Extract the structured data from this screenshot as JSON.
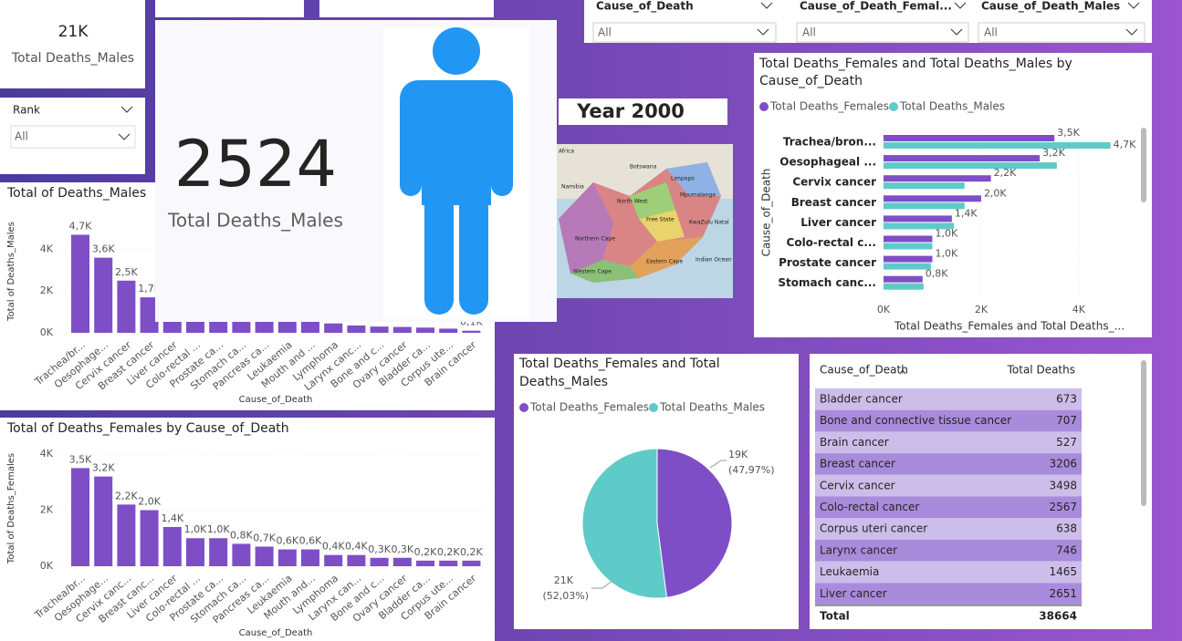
{
  "cards": [
    {
      "value": "21K",
      "label": "Total Deaths_Males"
    },
    {
      "value": 2524,
      "label": "Total Deaths_Males"
    }
  ],
  "slicers": [
    {
      "title": "Rank",
      "value": "All"
    },
    {
      "title": "Cause_of_Death",
      "value": "All"
    },
    {
      "title": "Cause_of_Death_Femal...",
      "value": "All"
    },
    {
      "title": "Cause_of_Death_Males",
      "value": "All"
    }
  ],
  "year_label": "Year 2000",
  "map": {
    "labels": [
      "Africa",
      "Botswana",
      "Namibia",
      "Limpopo",
      "North West",
      "Mpumalanga",
      "Free State",
      "KwaZulu Natal",
      "Northern Cape",
      "Eastern Cape",
      "Western Cape",
      "Indian Ocean"
    ]
  },
  "charts": [
    {
      "type": "bar",
      "title": "Total of Deaths_Males",
      "x_label": "Cause_of_Death",
      "y_label": "Total of Deaths_Males",
      "categories": [
        "Trachea/br...",
        "Oesophage...",
        "Cervix cancer",
        "Breast cancer",
        "Liver cancer",
        "Colo-rectal ...",
        "Prostate ca...",
        "Stomach ca...",
        "Pancreas ca...",
        "Leukaemia",
        "Mouth and ...",
        "Lymphoma",
        "Larynx canc...",
        "Bone and c...",
        "Ovary cancer",
        "Bladder ca...",
        "Corpus ute...",
        "Brain cancer"
      ],
      "values": [
        4700,
        3600,
        2500,
        1700,
        1400,
        1100,
        1000,
        900,
        800,
        700,
        600,
        450,
        350,
        300,
        280,
        250,
        200,
        100
      ],
      "value_labels": [
        "4,7K",
        "3,6K",
        "2,5K",
        "1,7K",
        null,
        null,
        null,
        null,
        null,
        null,
        null,
        null,
        null,
        null,
        null,
        null,
        null,
        "0,1K"
      ],
      "color": "#7e4ec7",
      "ylim": [
        0,
        5900
      ],
      "yticks": [
        {
          "value": 0,
          "label": "0K"
        },
        {
          "value": 2000,
          "label": "2K"
        },
        {
          "value": 4000,
          "label": "4K"
        }
      ]
    },
    {
      "type": "bar",
      "title": "Total of Deaths_Females by Cause_of_Death",
      "x_label": "Cause_of_Death",
      "y_label": "Total of Deaths_Females",
      "categories": [
        "Trachea/br...",
        "Oesophage...",
        "Cervix canc...",
        "Breast canc...",
        "Liver cancer",
        "Colo-rectal ...",
        "Prostate ca...",
        "Stomach ca...",
        "Pancreas ca...",
        "Leukaemia",
        "Mouth and...",
        "Lymphoma",
        "Larynx can...",
        "Bone and c...",
        "Ovary cancer",
        "Bladder ca...",
        "Corpus ute...",
        "Brain cancer"
      ],
      "values": [
        3500,
        3200,
        2200,
        2000,
        1400,
        1000,
        1000,
        800,
        700,
        600,
        600,
        400,
        400,
        300,
        300,
        200,
        200,
        200
      ],
      "value_labels": [
        "3,5K",
        "3,2K",
        "2,2K",
        "2,0K",
        "1,4K",
        "1,0K",
        "1,0K",
        "0,8K",
        "0,7K",
        "0,6K",
        "0,6K",
        "0,4K",
        "0,4K",
        "0,3K",
        "0,3K",
        "0,2K",
        "0,2K",
        "0,2K"
      ],
      "color": "#7e4ec7",
      "ylim": [
        0,
        4130
      ],
      "yticks": [
        {
          "value": 0,
          "label": "0K"
        },
        {
          "value": 2000,
          "label": "2K"
        },
        {
          "value": 4000,
          "label": "4K"
        }
      ]
    },
    {
      "type": "hbar",
      "title": [
        "Total Deaths_Females and Total Deaths_Males by",
        "Cause_of_Death"
      ],
      "x_label": "Total Deaths_Females and Total Deaths_...",
      "y_label": "Cause_of_Death",
      "categories": [
        "Trachea/bron...",
        "Oesophageal ...",
        "Cervix cancer",
        "Breast cancer",
        "Liver cancer",
        "Colo-rectal c...",
        "Prostate cancer",
        "Stomach canc..."
      ],
      "series": [
        {
          "name": "Total Deaths_Females",
          "color": "#7e4ec7",
          "values": [
            3500,
            3200,
            2200,
            2000,
            1400,
            1000,
            1000,
            800
          ],
          "value_labels": [
            "3,5K",
            "3,2K",
            "2,2K",
            "2,0K",
            "1,4K",
            "1,0K",
            "1,0K",
            "0,8K"
          ]
        },
        {
          "name": "Total  Deaths_Males",
          "color": "#5ecbc8",
          "values": [
            4650,
            3550,
            1660,
            1660,
            1440,
            1000,
            970,
            820
          ],
          "value_labels": [
            "4,7K",
            null,
            null,
            null,
            null,
            null,
            null,
            null
          ]
        }
      ],
      "xlim": [
        0,
        5180
      ],
      "xticks": [
        {
          "value": 0,
          "label": "0K"
        },
        {
          "value": 2000,
          "label": "2K"
        },
        {
          "value": 4000,
          "label": "4K"
        }
      ]
    },
    {
      "type": "pie",
      "title": [
        "Total Deaths_Females and Total",
        "Deaths_Males"
      ],
      "categories": [
        "Total Deaths_Females",
        "Total Deaths_Males"
      ],
      "colors": [
        "#7e4ec7",
        "#5ecbc8"
      ],
      "values": [
        47.97,
        52.03
      ],
      "value_labels": [
        "(47,97%)",
        "(52,03%)"
      ],
      "totals": [
        "19K",
        "21K"
      ]
    }
  ],
  "table": {
    "headers": [
      "Cause_of_Death",
      "Total Deaths"
    ],
    "rows": [
      [
        "Bladder cancer",
        673
      ],
      [
        "Bone and connective tissue cancer",
        707
      ],
      [
        "Brain cancer",
        527
      ],
      [
        "Breast cancer",
        3206
      ],
      [
        "Cervix cancer",
        3498
      ],
      [
        "Colo-rectal cancer",
        2567
      ],
      [
        "Corpus uteri cancer",
        638
      ],
      [
        "Larynx cancer",
        746
      ],
      [
        "Leukaemia",
        1465
      ],
      [
        "Liver cancer",
        2651
      ]
    ],
    "total": [
      "Total",
      38664
    ]
  }
}
